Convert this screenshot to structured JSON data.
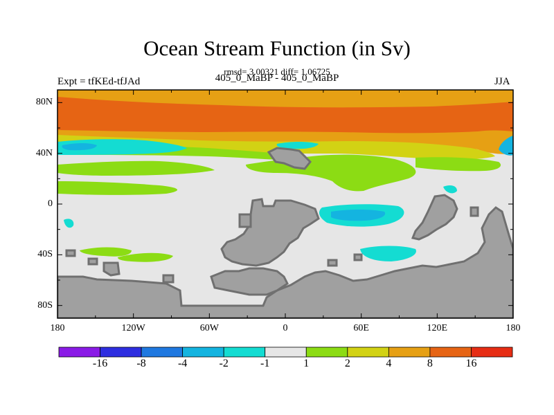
{
  "header": {
    "title": "Ocean Stream Function (in Sv)",
    "stats": "rmsd= 3.00321 diff= 1.06725",
    "expt": "Expt = tfKEd-tfJAd",
    "cases": "405_0_MaBP - 405_0_MaBP",
    "season": "JJA"
  },
  "axes": {
    "lat_ticks": [
      {
        "label": "80N",
        "value": 80
      },
      {
        "label": "40N",
        "value": 40
      },
      {
        "label": "0",
        "value": 0
      },
      {
        "label": "40S",
        "value": -40
      },
      {
        "label": "80S",
        "value": -80
      }
    ],
    "lon_ticks": [
      {
        "label": "180",
        "value": -180
      },
      {
        "label": "120W",
        "value": -120
      },
      {
        "label": "60W",
        "value": -60
      },
      {
        "label": "0",
        "value": 0
      },
      {
        "label": "60E",
        "value": 60
      },
      {
        "label": "120E",
        "value": 120
      },
      {
        "label": "180",
        "value": 180
      }
    ],
    "lon_range": [
      -180,
      180
    ],
    "lat_range": [
      -90,
      90
    ]
  },
  "colorbar": {
    "labels": [
      "-16",
      "-8",
      "-4",
      "-2",
      "-1",
      "1",
      "2",
      "4",
      "8",
      "16"
    ],
    "colors": [
      "#8a1be6",
      "#2e2ee0",
      "#1f78e0",
      "#14b4e0",
      "#14dcd2",
      "#e6e6e6",
      "#8cdc14",
      "#d2d214",
      "#e6a014",
      "#e66414",
      "#e62d14"
    ]
  },
  "colors": {
    "land": "#a0a0a0",
    "coast": "#707070",
    "background": "#e6e6e6"
  }
}
